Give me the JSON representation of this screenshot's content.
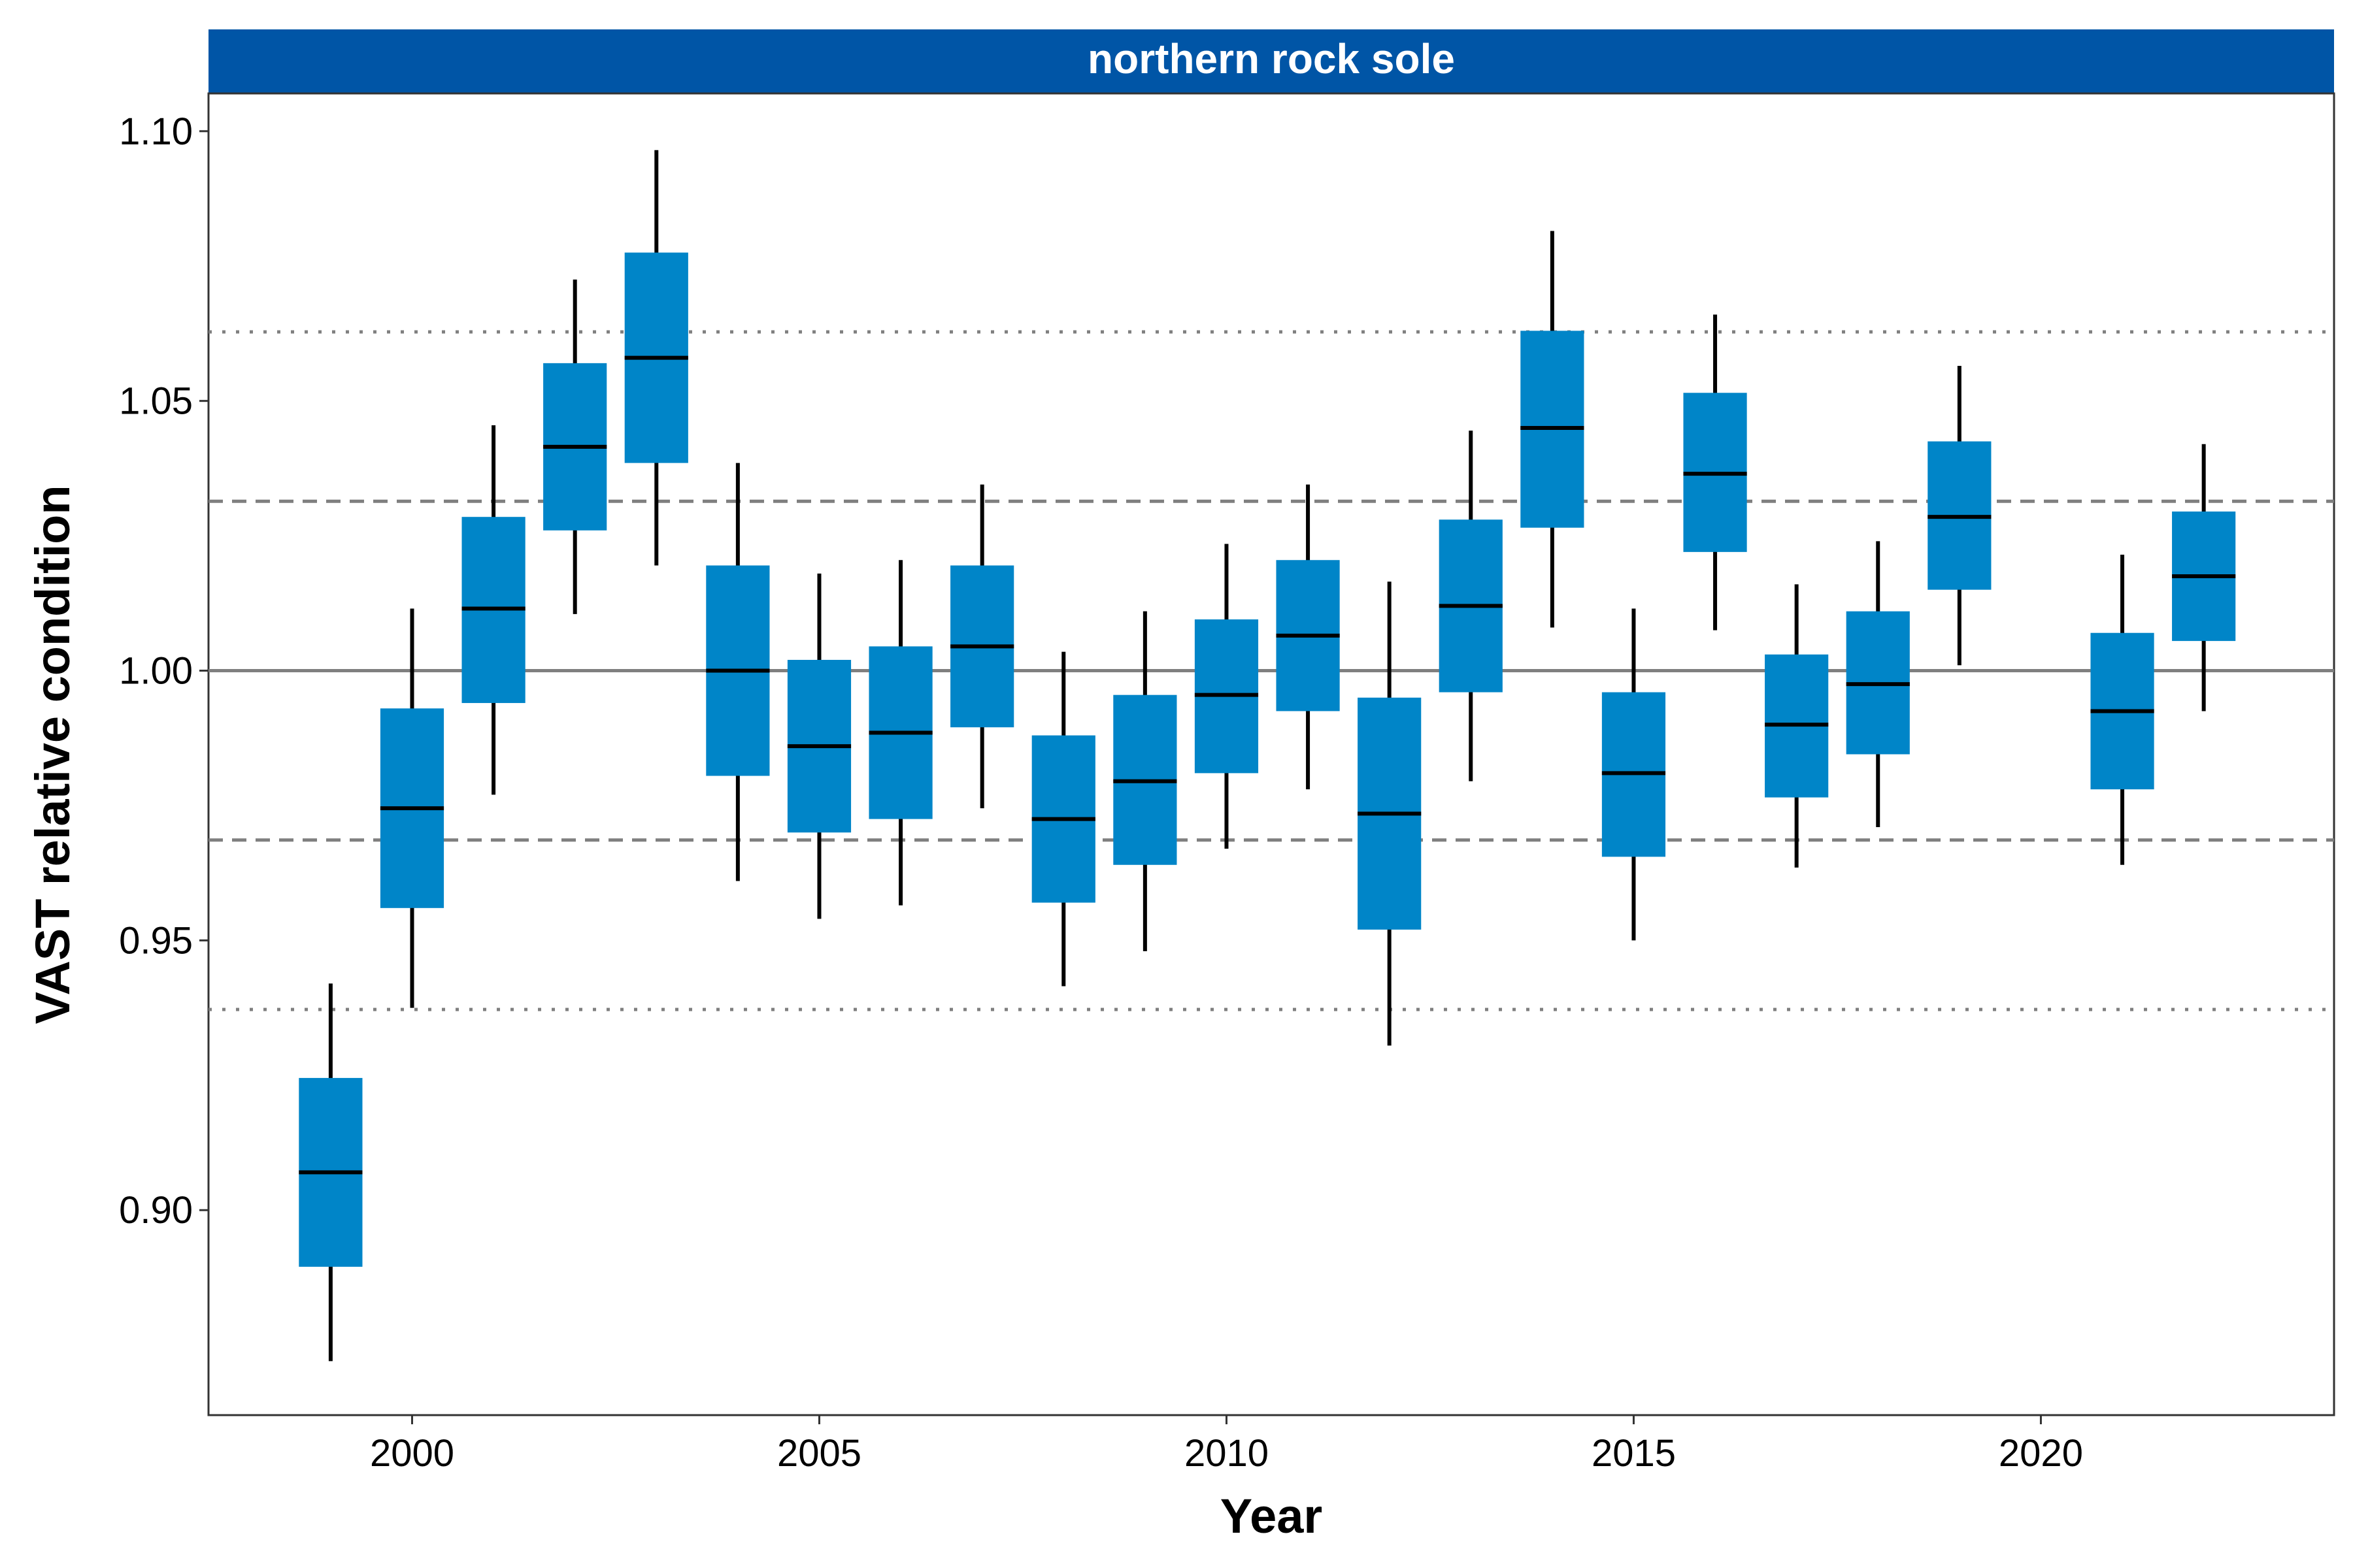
{
  "panel_title": "northern rock sole",
  "colors": {
    "strip": "#0055A6",
    "box": "#0085C8",
    "median": "#000000",
    "whisker": "#000000",
    "reference": "#7F7F7F"
  },
  "chart_data": {
    "type": "box",
    "title": "northern rock sole",
    "xlabel": "Year",
    "ylabel": "VAST relative condition",
    "xlim": [
      1997.5,
      2023.6
    ],
    "ylim": [
      0.862,
      1.107
    ],
    "x_ticks": [
      2000,
      2005,
      2010,
      2015,
      2020
    ],
    "x_tick_labels": [
      "2000",
      "2005",
      "2010",
      "2015",
      "2020"
    ],
    "y_ticks": [
      0.9,
      0.95,
      1.0,
      1.05,
      1.1
    ],
    "y_tick_labels": [
      "0.90",
      "0.95",
      "1.00",
      "1.05",
      "1.10"
    ],
    "grid": false,
    "reference_lines": [
      {
        "y": 1.0,
        "style": "solid"
      },
      {
        "y": 1.0314,
        "style": "dashed"
      },
      {
        "y": 0.9686,
        "style": "dashed"
      },
      {
        "y": 1.0628,
        "style": "dotted"
      },
      {
        "y": 0.9372,
        "style": "dotted"
      }
    ],
    "boxes": [
      {
        "x": 1999,
        "whisker_low": 0.872,
        "q1": 0.8895,
        "median": 0.907,
        "q3": 0.9245,
        "whisker_high": 0.942
      },
      {
        "x": 2000,
        "whisker_low": 0.9375,
        "q1": 0.956,
        "median": 0.9745,
        "q3": 0.993,
        "whisker_high": 1.0115
      },
      {
        "x": 2001,
        "whisker_low": 0.977,
        "q1": 0.994,
        "median": 1.0115,
        "q3": 1.0285,
        "whisker_high": 1.0455
      },
      {
        "x": 2002,
        "whisker_low": 1.0105,
        "q1": 1.026,
        "median": 1.0415,
        "q3": 1.057,
        "whisker_high": 1.0725
      },
      {
        "x": 2003,
        "whisker_low": 1.0195,
        "q1": 1.0385,
        "median": 1.058,
        "q3": 1.0775,
        "whisker_high": 1.0965
      },
      {
        "x": 2004,
        "whisker_low": 0.961,
        "q1": 0.9805,
        "median": 1.0,
        "q3": 1.0195,
        "whisker_high": 1.0385
      },
      {
        "x": 2005,
        "whisker_low": 0.954,
        "q1": 0.97,
        "median": 0.986,
        "q3": 1.002,
        "whisker_high": 1.018
      },
      {
        "x": 2006,
        "whisker_low": 0.9565,
        "q1": 0.9725,
        "median": 0.9885,
        "q3": 1.0045,
        "whisker_high": 1.0205
      },
      {
        "x": 2007,
        "whisker_low": 0.9745,
        "q1": 0.9895,
        "median": 1.0045,
        "q3": 1.0195,
        "whisker_high": 1.0345
      },
      {
        "x": 2008,
        "whisker_low": 0.9415,
        "q1": 0.957,
        "median": 0.9725,
        "q3": 0.988,
        "whisker_high": 1.0035
      },
      {
        "x": 2009,
        "whisker_low": 0.948,
        "q1": 0.964,
        "median": 0.9795,
        "q3": 0.9955,
        "whisker_high": 1.011
      },
      {
        "x": 2010,
        "whisker_low": 0.967,
        "q1": 0.981,
        "median": 0.9955,
        "q3": 1.0095,
        "whisker_high": 1.0235
      },
      {
        "x": 2011,
        "whisker_low": 0.978,
        "q1": 0.9925,
        "median": 1.0065,
        "q3": 1.0205,
        "whisker_high": 1.0345
      },
      {
        "x": 2012,
        "whisker_low": 0.9305,
        "q1": 0.952,
        "median": 0.9735,
        "q3": 0.995,
        "whisker_high": 1.0165
      },
      {
        "x": 2013,
        "whisker_low": 0.9795,
        "q1": 0.996,
        "median": 1.012,
        "q3": 1.028,
        "whisker_high": 1.0445
      },
      {
        "x": 2014,
        "whisker_low": 1.008,
        "q1": 1.0265,
        "median": 1.045,
        "q3": 1.063,
        "whisker_high": 1.0815
      },
      {
        "x": 2015,
        "whisker_low": 0.95,
        "q1": 0.9655,
        "median": 0.981,
        "q3": 0.996,
        "whisker_high": 1.0115
      },
      {
        "x": 2016,
        "whisker_low": 1.0075,
        "q1": 1.022,
        "median": 1.0365,
        "q3": 1.0515,
        "whisker_high": 1.066
      },
      {
        "x": 2017,
        "whisker_low": 0.9635,
        "q1": 0.9765,
        "median": 0.99,
        "q3": 1.003,
        "whisker_high": 1.016
      },
      {
        "x": 2018,
        "whisker_low": 0.971,
        "q1": 0.9845,
        "median": 0.9975,
        "q3": 1.011,
        "whisker_high": 1.024
      },
      {
        "x": 2019,
        "whisker_low": 1.001,
        "q1": 1.015,
        "median": 1.0285,
        "q3": 1.0425,
        "whisker_high": 1.0565
      },
      {
        "x": 2021,
        "whisker_low": 0.964,
        "q1": 0.978,
        "median": 0.9925,
        "q3": 1.007,
        "whisker_high": 1.0215
      },
      {
        "x": 2022,
        "whisker_low": 0.9925,
        "q1": 1.0055,
        "median": 1.0175,
        "q3": 1.0295,
        "whisker_high": 1.042
      }
    ]
  }
}
